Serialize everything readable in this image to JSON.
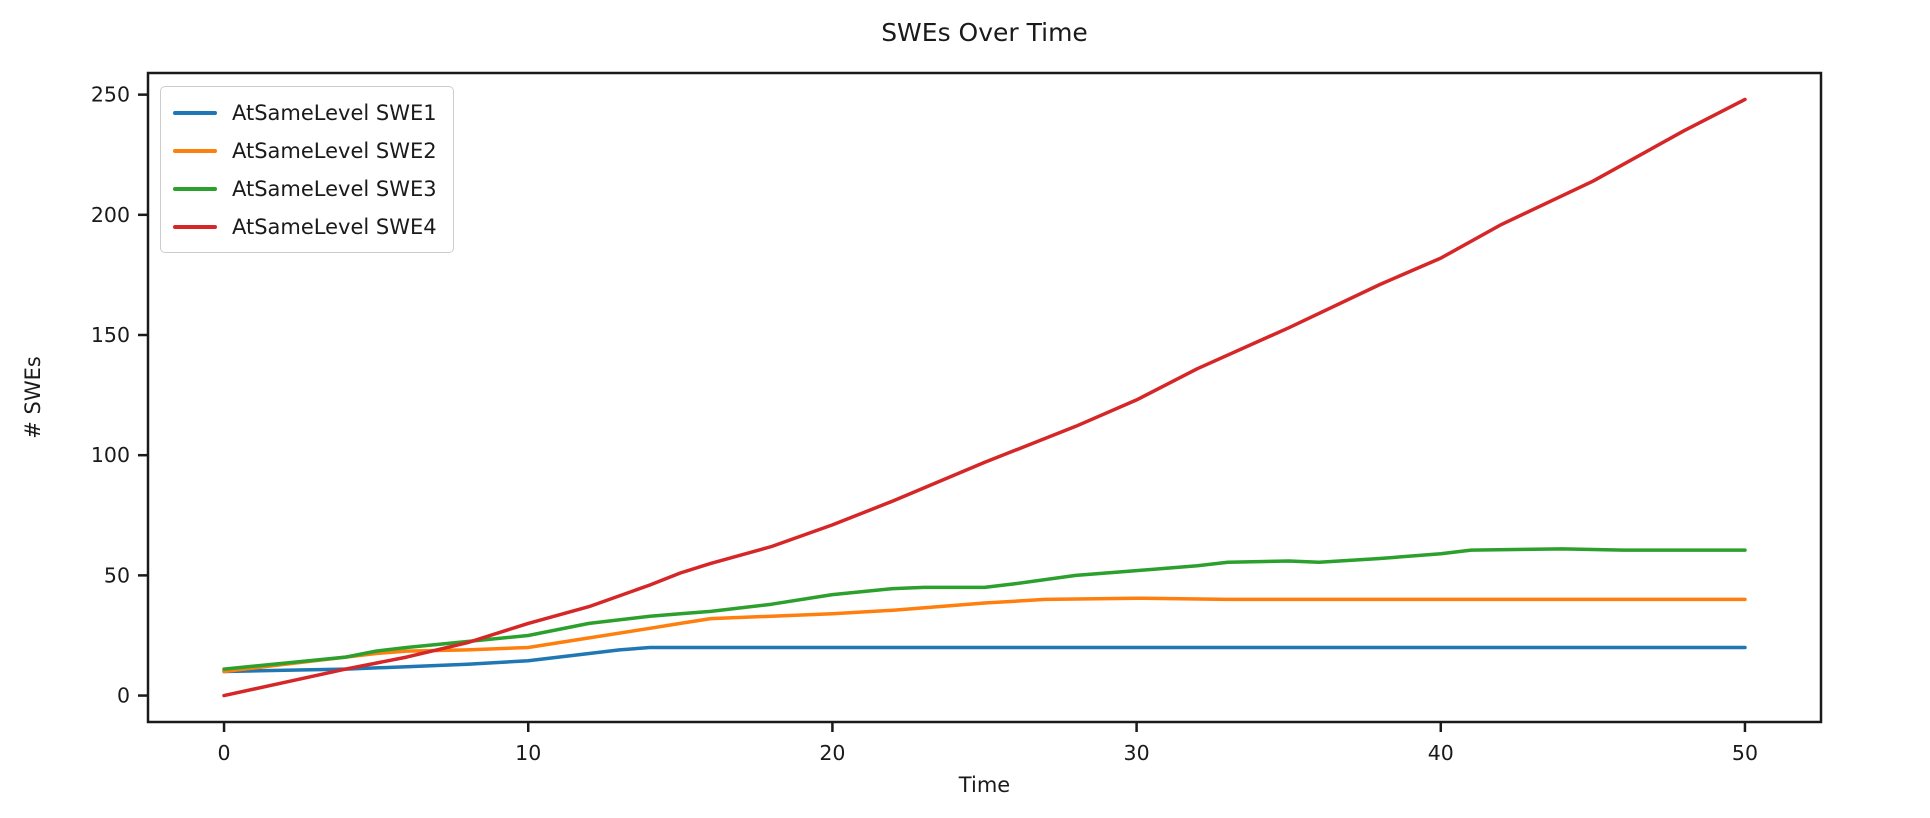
{
  "figure": {
    "title": "SWEs Over Time"
  },
  "chart_data": {
    "type": "line",
    "title": "SWEs Over Time",
    "xlabel": "Time",
    "ylabel": "# SWEs",
    "xlim": [
      -2.5,
      52.5
    ],
    "ylim": [
      -11,
      259
    ],
    "x_ticks": [
      0,
      10,
      20,
      30,
      40,
      50
    ],
    "y_ticks": [
      0,
      50,
      100,
      150,
      200,
      250
    ],
    "grid": false,
    "legend_position": "upper-left",
    "line_width": 3.5,
    "colors": {
      "swe1": "#1f77b4",
      "swe2": "#ff7f0e",
      "swe3": "#2ca02c",
      "swe4": "#d62728"
    },
    "series": [
      {
        "name": "AtSameLevel SWE1",
        "color": "#1f77b4",
        "points": [
          [
            0,
            10
          ],
          [
            2,
            10.5
          ],
          [
            4,
            11
          ],
          [
            5,
            11.5
          ],
          [
            6,
            12
          ],
          [
            8,
            13
          ],
          [
            10,
            14.5
          ],
          [
            11,
            16
          ],
          [
            12,
            17.5
          ],
          [
            13,
            19
          ],
          [
            14,
            20
          ],
          [
            16,
            20
          ],
          [
            20,
            20
          ],
          [
            25,
            20
          ],
          [
            30,
            20
          ],
          [
            35,
            20
          ],
          [
            40,
            20
          ],
          [
            45,
            20
          ],
          [
            50,
            20
          ]
        ]
      },
      {
        "name": "AtSameLevel SWE2",
        "color": "#ff7f0e",
        "points": [
          [
            0,
            10
          ],
          [
            2,
            13
          ],
          [
            4,
            16
          ],
          [
            5,
            17.5
          ],
          [
            6,
            18.5
          ],
          [
            8,
            19
          ],
          [
            10,
            20
          ],
          [
            12,
            24
          ],
          [
            14,
            28
          ],
          [
            15,
            30
          ],
          [
            16,
            32
          ],
          [
            18,
            33
          ],
          [
            20,
            34
          ],
          [
            22,
            35.5
          ],
          [
            25,
            38.5
          ],
          [
            27,
            40
          ],
          [
            30,
            40.5
          ],
          [
            33,
            40
          ],
          [
            35,
            40
          ],
          [
            40,
            40
          ],
          [
            45,
            40
          ],
          [
            50,
            40
          ]
        ]
      },
      {
        "name": "AtSameLevel SWE3",
        "color": "#2ca02c",
        "points": [
          [
            0,
            11
          ],
          [
            2,
            13.5
          ],
          [
            4,
            16
          ],
          [
            5,
            18.5
          ],
          [
            6,
            20
          ],
          [
            8,
            22.5
          ],
          [
            10,
            25
          ],
          [
            12,
            30
          ],
          [
            14,
            33
          ],
          [
            15,
            34
          ],
          [
            16,
            35
          ],
          [
            18,
            38
          ],
          [
            20,
            42
          ],
          [
            22,
            44.5
          ],
          [
            23,
            45
          ],
          [
            25,
            45
          ],
          [
            26,
            46.5
          ],
          [
            28,
            50
          ],
          [
            30,
            52
          ],
          [
            32,
            54
          ],
          [
            33,
            55.5
          ],
          [
            35,
            56
          ],
          [
            36,
            55.5
          ],
          [
            38,
            57
          ],
          [
            40,
            59
          ],
          [
            41,
            60.5
          ],
          [
            44,
            61
          ],
          [
            46,
            60.5
          ],
          [
            50,
            60.5
          ]
        ]
      },
      {
        "name": "AtSameLevel SWE4",
        "color": "#d62728",
        "points": [
          [
            0,
            0
          ],
          [
            2,
            5.5
          ],
          [
            4,
            11
          ],
          [
            5,
            13.5
          ],
          [
            6,
            16
          ],
          [
            8,
            22
          ],
          [
            10,
            30
          ],
          [
            12,
            37
          ],
          [
            14,
            46
          ],
          [
            15,
            51
          ],
          [
            16,
            55
          ],
          [
            18,
            62
          ],
          [
            20,
            71
          ],
          [
            22,
            81
          ],
          [
            25,
            97
          ],
          [
            28,
            112
          ],
          [
            30,
            123
          ],
          [
            32,
            136
          ],
          [
            35,
            153
          ],
          [
            38,
            171
          ],
          [
            40,
            182
          ],
          [
            42,
            196
          ],
          [
            45,
            214
          ],
          [
            48,
            235
          ],
          [
            50,
            248
          ]
        ]
      }
    ]
  }
}
